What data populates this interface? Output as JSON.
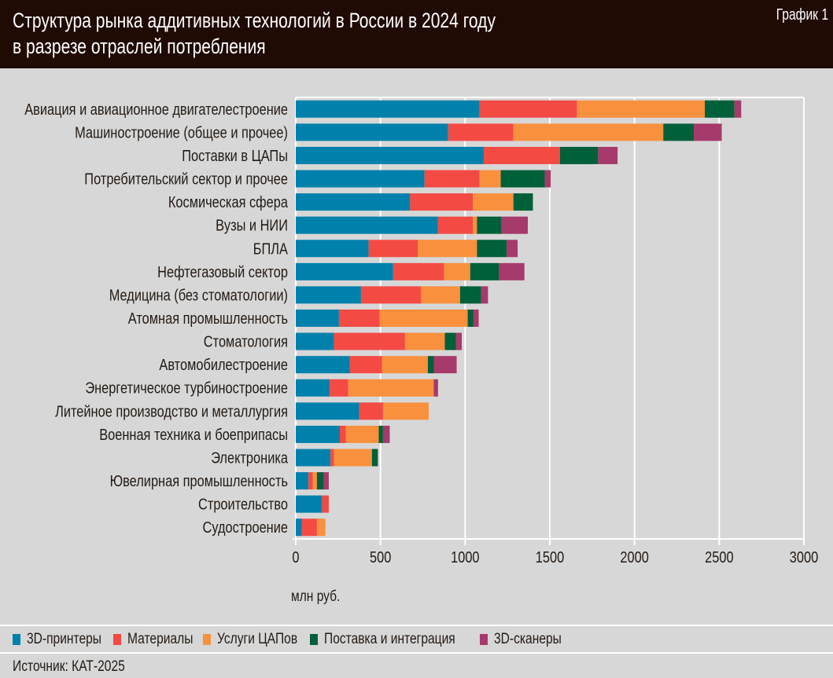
{
  "header": {
    "title_line1": "Структура рынка аддитивных технологий в России в 2024 году",
    "title_line2": "в разрезе отраслей потребления",
    "badge": "График 1"
  },
  "chart_data": {
    "type": "bar",
    "orientation": "horizontal",
    "stacked": true,
    "xlabel": "млн руб.",
    "xlim": [
      0,
      3000
    ],
    "xticks": [
      0,
      500,
      1000,
      1500,
      2000,
      2500,
      3000
    ],
    "grid": true,
    "legend_placement": "bottom",
    "categories": [
      "Авиация и авиационное двигателестроение",
      "Машиностроение (общее и прочее)",
      "Поставки в ЦАПы",
      "Потребительский сектор и прочее",
      "Космическая сфера",
      "Вузы и НИИ",
      "БПЛА",
      "Нефтегазовый сектор",
      "Медицина (без стоматологии)",
      "Атомная промышленность",
      "Стоматология",
      "Автомобилестроение",
      "Энергетическое турбиностроение",
      "Литейное производство и металлургия",
      "Военная техника и боеприпасы",
      "Электроника",
      "Ювелирная промышленность",
      "Строительство",
      "Судостроение"
    ],
    "series": [
      {
        "name": "3D-принтеры",
        "color": "#0081ac",
        "values": [
          1085,
          900,
          1110,
          760,
          675,
          840,
          430,
          575,
          385,
          255,
          225,
          320,
          200,
          375,
          260,
          205,
          75,
          155,
          35
        ]
      },
      {
        "name": "Материалы",
        "color": "#f44a44",
        "values": [
          575,
          385,
          450,
          325,
          370,
          205,
          290,
          300,
          355,
          240,
          420,
          190,
          110,
          140,
          35,
          20,
          25,
          40,
          90
        ]
      },
      {
        "name": "Услуги ЦАПов",
        "color": "#f9903e",
        "values": [
          755,
          885,
          0,
          125,
          240,
          25,
          350,
          155,
          230,
          520,
          235,
          270,
          505,
          270,
          195,
          225,
          25,
          0,
          50
        ]
      },
      {
        "name": "Поставка и интеграция",
        "color": "#00603a",
        "values": [
          175,
          180,
          225,
          260,
          115,
          145,
          175,
          170,
          125,
          35,
          65,
          35,
          0,
          0,
          25,
          35,
          40,
          0,
          0
        ]
      },
      {
        "name": "3D-сканеры",
        "color": "#a63a6b",
        "values": [
          40,
          165,
          115,
          35,
          0,
          155,
          65,
          150,
          40,
          30,
          35,
          135,
          25,
          0,
          40,
          0,
          30,
          0,
          0
        ]
      }
    ]
  },
  "source": "Источник: КАТ-2025"
}
